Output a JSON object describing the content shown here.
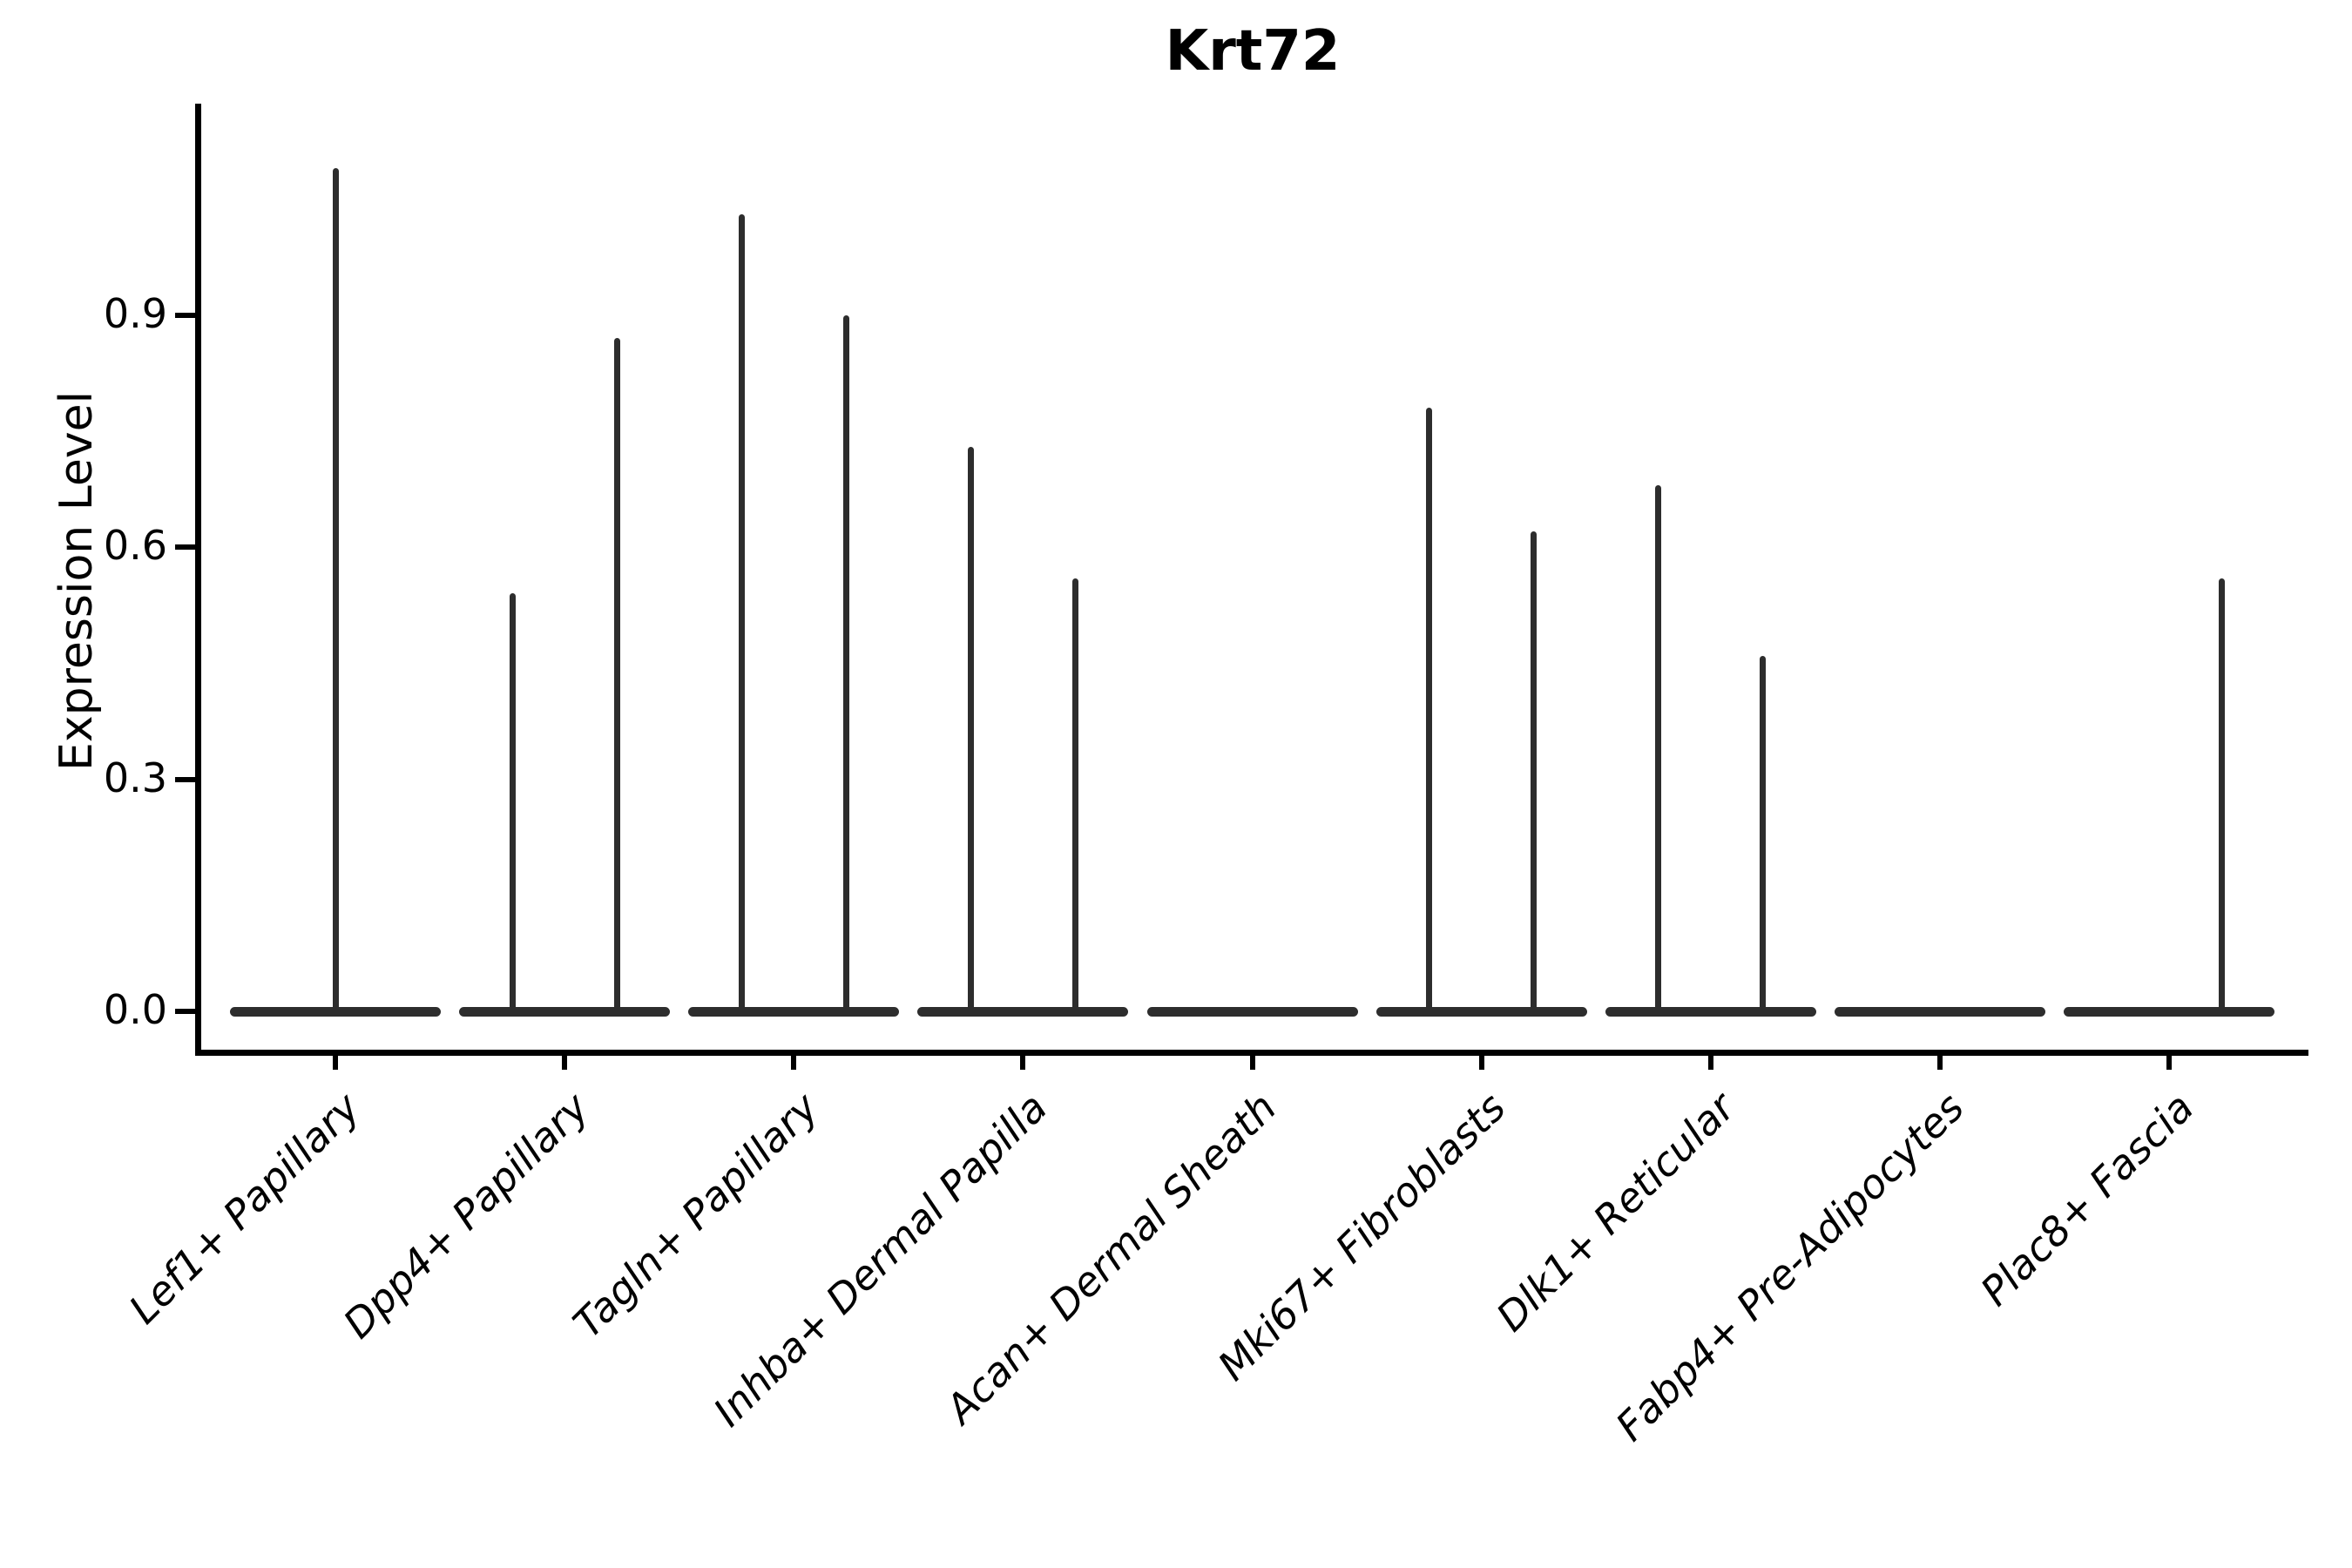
{
  "figure": {
    "title": "Krt72",
    "ylabel": "Expression Level"
  },
  "chart_data": {
    "type": "violin",
    "title": "Krt72",
    "xlabel": "",
    "ylabel": "Expression Level",
    "yticks": [
      0.0,
      0.3,
      0.6,
      0.9
    ],
    "ylim": [
      0.0,
      1.17
    ],
    "grid": false,
    "legend": "none",
    "style": "needle-thin violins with flat zero-expression baseline, despined top/right, x labels rotated 45deg italic",
    "categories": [
      "Lef1+ Papillary",
      "Dpp4+ Papillary",
      "Tagln+ Papillary",
      "Inhba+ Dermal Papilla",
      "Acan+ Dermal Sheath",
      "Mki67+ Fibroblasts",
      "Dlk1+ Reticular",
      "Fabp4+ Pre-Adipocytes",
      "Plac8+ Fascia"
    ],
    "violins": [
      {
        "category": "Lef1+ Papillary",
        "baseline_value": 0.0,
        "spikes": [
          {
            "pos": "center",
            "value": 1.09
          }
        ]
      },
      {
        "category": "Dpp4+ Papillary",
        "baseline_value": 0.0,
        "spikes": [
          {
            "pos": "left",
            "value": 0.54
          },
          {
            "pos": "right",
            "value": 0.87
          }
        ]
      },
      {
        "category": "Tagln+ Papillary",
        "baseline_value": 0.0,
        "spikes": [
          {
            "pos": "left",
            "value": 1.03
          },
          {
            "pos": "right",
            "value": 0.9
          }
        ]
      },
      {
        "category": "Inhba+ Dermal Papilla",
        "baseline_value": 0.0,
        "spikes": [
          {
            "pos": "left",
            "value": 0.73
          },
          {
            "pos": "right",
            "value": 0.56
          }
        ]
      },
      {
        "category": "Acan+ Dermal Sheath",
        "baseline_value": 0.0,
        "spikes": []
      },
      {
        "category": "Mki67+ Fibroblasts",
        "baseline_value": 0.0,
        "spikes": [
          {
            "pos": "left",
            "value": 0.78
          },
          {
            "pos": "right",
            "value": 0.62
          }
        ]
      },
      {
        "category": "Dlk1+ Reticular",
        "baseline_value": 0.0,
        "spikes": [
          {
            "pos": "left",
            "value": 0.68
          },
          {
            "pos": "right",
            "value": 0.46
          }
        ]
      },
      {
        "category": "Fabp4+ Pre-Adipocytes",
        "baseline_value": 0.0,
        "spikes": []
      },
      {
        "category": "Plac8+ Fascia",
        "baseline_value": 0.0,
        "spikes": [
          {
            "pos": "right",
            "value": 0.56
          }
        ]
      }
    ],
    "colors": {
      "violin_stroke": "#2d2d2d",
      "axis": "#000000",
      "background": "#ffffff"
    }
  }
}
